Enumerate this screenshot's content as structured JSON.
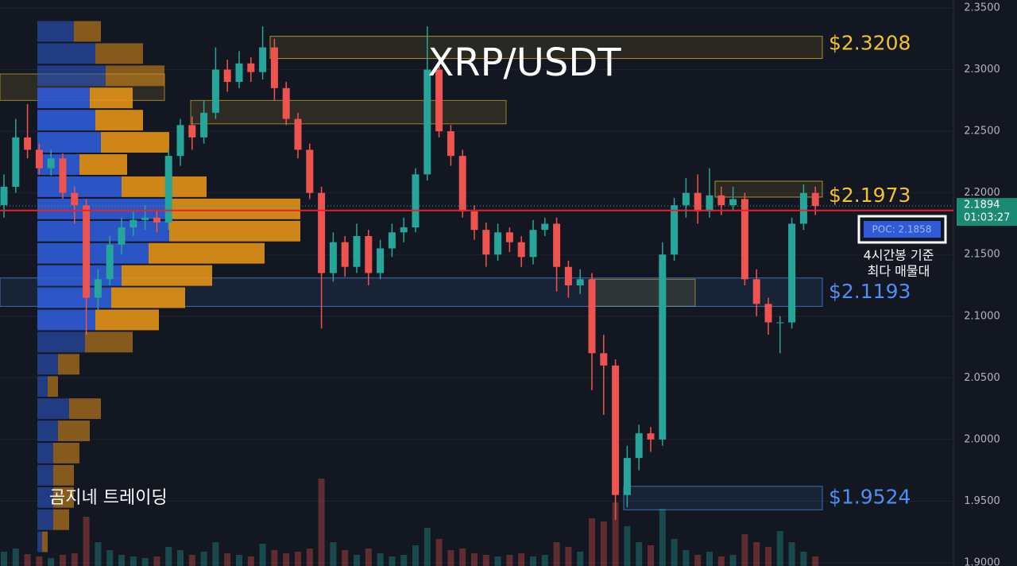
{
  "chart_data": {
    "type": "candlestick",
    "title": "XRP/USDT",
    "watermark": "곰지네 트레이딩",
    "up_color": "#26a69a",
    "down_color": "#ef5350",
    "ylim": [
      1.9,
      2.35
    ],
    "yticks": [
      {
        "value": 2.35,
        "label": "2.3500"
      },
      {
        "value": 2.3,
        "label": "2.3000"
      },
      {
        "value": 2.25,
        "label": "2.2500"
      },
      {
        "value": 2.2,
        "label": "2.2000"
      },
      {
        "value": 2.15,
        "label": "2.1500"
      },
      {
        "value": 2.1,
        "label": "2.1000"
      },
      {
        "value": 2.05,
        "label": "2.0500"
      },
      {
        "value": 2.0,
        "label": "2.0000"
      },
      {
        "value": 1.95,
        "label": "1.9500"
      },
      {
        "value": 1.9,
        "label": "1.9000"
      }
    ],
    "grid": true,
    "open": [
      2.19,
      2.205,
      2.245,
      2.235,
      2.22,
      2.228,
      2.2,
      2.19,
      2.115,
      2.13,
      2.158,
      2.172,
      2.178,
      2.18,
      2.176,
      2.23,
      2.255,
      2.245,
      2.265,
      2.3,
      2.29,
      2.305,
      2.298,
      2.318,
      2.285,
      2.26,
      2.235,
      2.2,
      2.135,
      2.16,
      2.14,
      2.165,
      2.135,
      2.155,
      2.168,
      2.172,
      2.215,
      2.3,
      2.25,
      2.23,
      2.185,
      2.17,
      2.15,
      2.168,
      2.16,
      2.148,
      2.17,
      2.175,
      2.14,
      2.125,
      2.13,
      2.07,
      2.06,
      1.955,
      1.985,
      2.005,
      2.0,
      2.15,
      2.19,
      2.2,
      2.185,
      2.198,
      2.19,
      2.195,
      2.13,
      2.11,
      2.095,
      2.095,
      2.175,
      2.2
    ],
    "high": [
      2.215,
      2.26,
      2.272,
      2.24,
      2.235,
      2.232,
      2.205,
      2.195,
      2.138,
      2.165,
      2.18,
      2.185,
      2.19,
      2.186,
      2.236,
      2.26,
      2.262,
      2.275,
      2.318,
      2.308,
      2.315,
      2.31,
      2.335,
      2.325,
      2.29,
      2.265,
      2.24,
      2.205,
      2.168,
      2.165,
      2.175,
      2.17,
      2.162,
      2.175,
      2.18,
      2.22,
      2.335,
      2.31,
      2.255,
      2.235,
      2.19,
      2.176,
      2.175,
      2.172,
      2.165,
      2.178,
      2.18,
      2.18,
      2.145,
      2.138,
      2.135,
      2.085,
      2.065,
      1.995,
      2.012,
      2.01,
      2.16,
      2.196,
      2.212,
      2.215,
      2.22,
      2.205,
      2.205,
      2.2,
      2.138,
      2.115,
      2.1,
      2.18,
      2.207,
      2.205
    ],
    "low": [
      2.18,
      2.2,
      2.228,
      2.215,
      2.214,
      2.195,
      2.175,
      2.085,
      2.105,
      2.125,
      2.15,
      2.165,
      2.17,
      2.168,
      2.17,
      2.222,
      2.235,
      2.24,
      2.26,
      2.282,
      2.285,
      2.29,
      2.292,
      2.275,
      2.255,
      2.228,
      2.195,
      2.09,
      2.128,
      2.132,
      2.135,
      2.125,
      2.13,
      2.148,
      2.16,
      2.168,
      2.21,
      2.245,
      2.222,
      2.18,
      2.162,
      2.14,
      2.145,
      2.152,
      2.14,
      2.142,
      2.165,
      2.12,
      2.115,
      2.118,
      2.04,
      2.02,
      1.935,
      1.945,
      1.975,
      1.99,
      1.995,
      2.145,
      2.18,
      2.175,
      2.18,
      2.182,
      2.185,
      2.125,
      2.1,
      2.085,
      2.07,
      2.09,
      2.17,
      2.182
    ],
    "close": [
      2.205,
      2.245,
      2.235,
      2.22,
      2.228,
      2.2,
      2.19,
      2.115,
      2.13,
      2.158,
      2.172,
      2.178,
      2.18,
      2.176,
      2.23,
      2.255,
      2.245,
      2.265,
      2.3,
      2.29,
      2.305,
      2.298,
      2.318,
      2.285,
      2.26,
      2.235,
      2.2,
      2.135,
      2.16,
      2.14,
      2.165,
      2.135,
      2.155,
      2.168,
      2.172,
      2.215,
      2.3,
      2.25,
      2.23,
      2.185,
      2.17,
      2.15,
      2.168,
      2.16,
      2.148,
      2.17,
      2.175,
      2.14,
      2.125,
      2.13,
      2.07,
      2.06,
      1.955,
      1.985,
      2.005,
      2.0,
      2.15,
      2.19,
      2.2,
      2.185,
      2.198,
      2.19,
      2.195,
      2.13,
      2.11,
      2.095,
      2.095,
      2.175,
      2.2,
      2.1894
    ],
    "volume": [
      18,
      22,
      15,
      12,
      10,
      14,
      16,
      62,
      30,
      20,
      14,
      12,
      10,
      12,
      24,
      20,
      14,
      18,
      30,
      16,
      14,
      12,
      28,
      20,
      16,
      18,
      22,
      110,
      30,
      20,
      14,
      22,
      16,
      12,
      14,
      26,
      48,
      34,
      20,
      22,
      16,
      14,
      12,
      14,
      16,
      12,
      14,
      30,
      24,
      18,
      60,
      56,
      80,
      50,
      30,
      26,
      72,
      34,
      20,
      14,
      18,
      12,
      14,
      40,
      30,
      24,
      44,
      30,
      18,
      12
    ],
    "volume_profile": {
      "bins": [
        2.34,
        2.322,
        2.304,
        2.286,
        2.268,
        2.25,
        2.232,
        2.214,
        2.196,
        2.178,
        2.16,
        2.142,
        2.124,
        2.106,
        2.088,
        2.07,
        2.052,
        2.034,
        2.016,
        1.998,
        1.98,
        1.962,
        1.944,
        1.926,
        1.908
      ],
      "buy": [
        46,
        73,
        86,
        66,
        73,
        80,
        53,
        106,
        166,
        166,
        140,
        106,
        93,
        73,
        60,
        26,
        13,
        40,
        26,
        20,
        20,
        20,
        20,
        6
      ],
      "sell": [
        34,
        60,
        74,
        54,
        60,
        86,
        60,
        107,
        165,
        165,
        146,
        114,
        93,
        80,
        60,
        27,
        13,
        40,
        40,
        33,
        26,
        26,
        20,
        7
      ],
      "buy_color": "#2f5bd6",
      "sell_color": "#e39217"
    },
    "levels": [
      {
        "label": "$2.3208",
        "value": 2.3208,
        "color": "#f2c12e",
        "zone": [
          2.309,
          2.327
        ]
      },
      {
        "label": "$2.1973",
        "value": 2.1973,
        "color": "#f2c12e",
        "zone": [
          2.1966,
          2.2095
        ]
      },
      {
        "label": "$2.1193",
        "value": 2.1193,
        "color": "#4f8ff0",
        "zone": [
          2.108,
          2.131
        ]
      },
      {
        "label": "$1.9524",
        "value": 1.9524,
        "color": "#4f8ff0",
        "zone": [
          1.943,
          1.962
        ]
      }
    ],
    "zones": [
      {
        "low": 2.256,
        "high": 2.275,
        "color": "#f2c12e"
      },
      {
        "low": 2.275,
        "high": 2.2965,
        "color": "#f2c12e"
      },
      {
        "low": 2.108,
        "high": 2.13,
        "color": "#f2c12e"
      }
    ],
    "current": {
      "value": 2.1894,
      "countdown": "01:03:27"
    },
    "poc": {
      "value": 2.1858,
      "label": "POC: 2.1858",
      "note": [
        "4시간봉 기준",
        "최다 매물대"
      ]
    }
  }
}
